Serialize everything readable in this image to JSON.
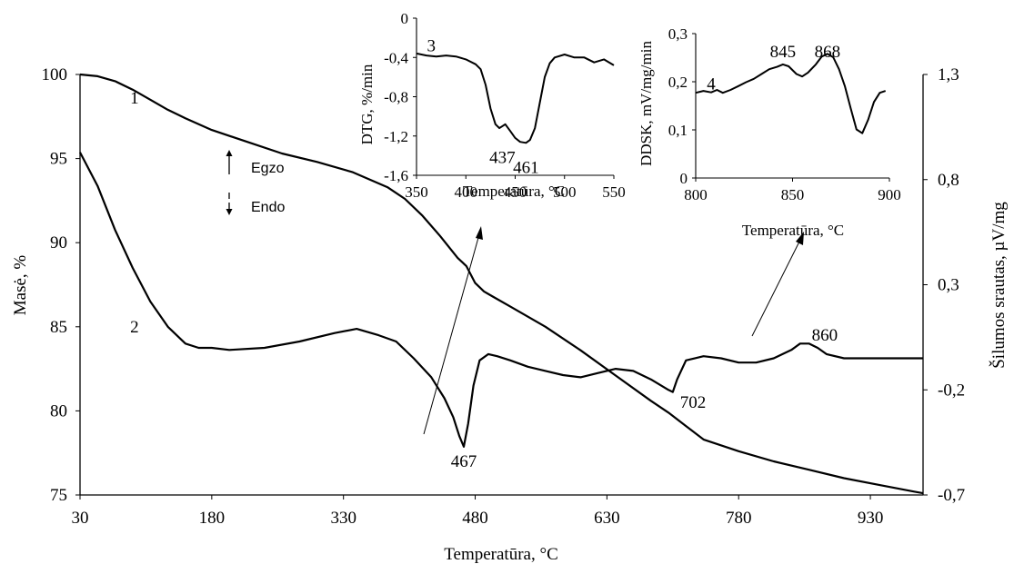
{
  "chart_data": [
    {
      "type": "line",
      "xlabel": "Temperatūra, °C",
      "ylabel": "Masė,  %",
      "y2label": "Šilumos  srautas, µV/mg",
      "xlim": [
        30,
        990
      ],
      "ylim": [
        75,
        100
      ],
      "y2lim": [
        -0.7,
        1.3
      ],
      "xticks": [
        "30",
        "180",
        "330",
        "480",
        "630",
        "780",
        "930"
      ],
      "yticks": [
        "75",
        "80",
        "85",
        "90",
        "95",
        "100"
      ],
      "y2ticks": [
        "-0,7",
        "-0,2",
        "0,3",
        "0,8",
        "1,3"
      ],
      "grid": false,
      "series": [
        {
          "name": "1",
          "axis": "left",
          "x": [
            30,
            50,
            70,
            90,
            110,
            130,
            150,
            180,
            220,
            260,
            300,
            340,
            380,
            400,
            420,
            440,
            460,
            470,
            480,
            490,
            500,
            520,
            560,
            600,
            640,
            680,
            700,
            720,
            740,
            780,
            820,
            860,
            900,
            940,
            980,
            990
          ],
          "y": [
            100,
            99.9,
            99.6,
            99.1,
            98.5,
            97.9,
            97.4,
            96.7,
            96.0,
            95.3,
            94.8,
            94.2,
            93.3,
            92.6,
            91.6,
            90.4,
            89.1,
            88.6,
            87.6,
            87.1,
            86.8,
            86.2,
            85.0,
            83.6,
            82.1,
            80.6,
            79.9,
            79.1,
            78.3,
            77.6,
            77.0,
            76.5,
            76.0,
            75.6,
            75.2,
            75.1
          ]
        },
        {
          "name": "2",
          "axis": "right",
          "x": [
            30,
            50,
            70,
            90,
            110,
            130,
            150,
            165,
            180,
            200,
            240,
            280,
            320,
            345,
            370,
            390,
            410,
            430,
            445,
            455,
            462,
            467,
            472,
            478,
            485,
            495,
            505,
            520,
            540,
            560,
            580,
            600,
            620,
            640,
            660,
            680,
            700,
            705,
            710,
            720,
            740,
            760,
            780,
            800,
            820,
            840,
            850,
            860,
            870,
            880,
            900,
            920,
            940,
            960,
            990
          ],
          "y": [
            0.93,
            0.77,
            0.56,
            0.38,
            0.22,
            0.1,
            0.02,
            0.0,
            0.0,
            -0.01,
            0.0,
            0.03,
            0.07,
            0.09,
            0.06,
            0.03,
            -0.05,
            -0.14,
            -0.24,
            -0.33,
            -0.42,
            -0.47,
            -0.36,
            -0.18,
            -0.06,
            -0.03,
            -0.04,
            -0.06,
            -0.09,
            -0.11,
            -0.13,
            -0.14,
            -0.12,
            -0.1,
            -0.11,
            -0.15,
            -0.2,
            -0.21,
            -0.15,
            -0.06,
            -0.04,
            -0.05,
            -0.07,
            -0.07,
            -0.05,
            -0.01,
            0.02,
            0.02,
            0.0,
            -0.03,
            -0.05,
            -0.05,
            -0.05,
            -0.05,
            -0.05
          ]
        }
      ],
      "annotations": [
        {
          "text": "1",
          "x": 92,
          "y": 98.6,
          "axis": "left"
        },
        {
          "text": "2",
          "x": 92,
          "y": 0.1,
          "axis": "right"
        },
        {
          "text": "467",
          "x": 467,
          "y": -0.54,
          "axis": "right"
        },
        {
          "text": "702",
          "x": 728,
          "y": -0.26,
          "axis": "right"
        },
        {
          "text": "860",
          "x": 878,
          "y": 0.06,
          "axis": "right"
        }
      ],
      "legend": {
        "position": "upper-left",
        "items": [
          {
            "text": "Egzo",
            "arrow": "up"
          },
          {
            "text": "Endo",
            "arrow": "down"
          }
        ]
      }
    },
    {
      "type": "line",
      "xlabel": "Temperatūra, °C",
      "ylabel": "DTG, %/min",
      "xlim": [
        350,
        550
      ],
      "ylim": [
        -1.6,
        0
      ],
      "xticks": [
        "350",
        "400",
        "450",
        "500",
        "550"
      ],
      "yticks": [
        "-1,6",
        "-1,2",
        "-0,8",
        "-0,4",
        "0"
      ],
      "series": [
        {
          "name": "3",
          "x": [
            350,
            360,
            370,
            380,
            390,
            400,
            410,
            415,
            420,
            425,
            430,
            434,
            437,
            440,
            445,
            450,
            455,
            461,
            465,
            470,
            475,
            480,
            485,
            490,
            500,
            510,
            520,
            530,
            540,
            550
          ],
          "y": [
            -0.36,
            -0.38,
            -0.39,
            -0.38,
            -0.39,
            -0.42,
            -0.47,
            -0.52,
            -0.68,
            -0.92,
            -1.08,
            -1.12,
            -1.1,
            -1.08,
            -1.15,
            -1.22,
            -1.26,
            -1.27,
            -1.24,
            -1.12,
            -0.86,
            -0.6,
            -0.46,
            -0.4,
            -0.37,
            -0.4,
            -0.4,
            -0.45,
            -0.42,
            -0.48
          ]
        }
      ],
      "annotations": [
        {
          "text": "3",
          "x": 365,
          "y": -0.28
        },
        {
          "text": "437",
          "x": 437,
          "y": -1.42
        },
        {
          "text": "461",
          "x": 461,
          "y": -1.52
        }
      ]
    },
    {
      "type": "line",
      "xlabel": "Temperatūra, °C",
      "ylabel": "DDSK, mV/mg/min",
      "xlim": [
        800,
        900
      ],
      "ylim": [
        0,
        0.3
      ],
      "xticks": [
        "800",
        "850",
        "900"
      ],
      "yticks": [
        "0",
        "0,1",
        "0,2",
        "0,3"
      ],
      "series": [
        {
          "name": "4",
          "x": [
            800,
            804,
            808,
            811,
            814,
            818,
            822,
            826,
            830,
            834,
            838,
            842,
            845,
            848,
            852,
            855,
            858,
            862,
            865,
            868,
            871,
            874,
            877,
            880,
            883,
            886,
            889,
            892,
            895,
            898
          ],
          "y": [
            0.177,
            0.181,
            0.178,
            0.183,
            0.177,
            0.183,
            0.191,
            0.199,
            0.206,
            0.216,
            0.226,
            0.231,
            0.236,
            0.232,
            0.216,
            0.211,
            0.219,
            0.236,
            0.252,
            0.258,
            0.251,
            0.226,
            0.191,
            0.145,
            0.101,
            0.093,
            0.121,
            0.158,
            0.177,
            0.181
          ]
        }
      ],
      "annotations": [
        {
          "text": "4",
          "x": 808,
          "y": 0.195
        },
        {
          "text": "845",
          "x": 845,
          "y": 0.262
        },
        {
          "text": "868",
          "x": 868,
          "y": 0.262
        }
      ]
    }
  ]
}
